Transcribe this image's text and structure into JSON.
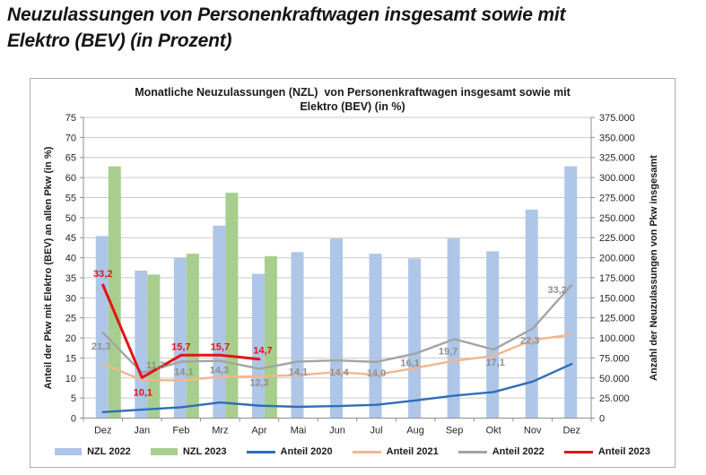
{
  "page": {
    "title_line1": "Neuzulassungen von Personenkraftwagen insgesamt sowie mit",
    "title_line2": "Elektro (BEV) (in Prozent)"
  },
  "chart": {
    "title_line1": "Monatliche Neuzulassungen (NZL)  von Personenkraftwagen insgesamt sowie mit",
    "title_line2": "Elektro (BEV) (in %)",
    "left_axis_title": "Anteil der Pkw mit Elektro (BEV) an allen Pkw (in %)",
    "right_axis_title": "Anzahl der Neuzulassungen von Pkw insgesamt"
  },
  "chart_data": {
    "type": "bar",
    "title": "Monatliche Neuzulassungen (NZL) von Personenkraftwagen insgesamt sowie mit Elektro (BEV) (in %)",
    "categories": [
      "Dez",
      "Jan",
      "Feb",
      "Mrz",
      "Apr",
      "Mai",
      "Jun",
      "Jul",
      "Aug",
      "Sep",
      "Okt",
      "Nov",
      "Dez"
    ],
    "left_axis": {
      "label": "Anteil der Pkw mit Elektro (BEV) an allen Pkw (in %)",
      "min": 0,
      "max": 75,
      "step": 5,
      "ticks": [
        "0",
        "5",
        "10",
        "15",
        "20",
        "25",
        "30",
        "35",
        "40",
        "45",
        "50",
        "55",
        "60",
        "65",
        "70",
        "75"
      ]
    },
    "right_axis": {
      "label": "Anzahl der Neuzulassungen von Pkw insgesamt",
      "min": 0,
      "max": 375000,
      "step": 25000,
      "ticks": [
        "0",
        "25.000",
        "50.000",
        "75.000",
        "100.000",
        "125.000",
        "150.000",
        "175.000",
        "200.000",
        "225.000",
        "250.000",
        "275.000",
        "300.000",
        "325.000",
        "350.000",
        "375.000"
      ]
    },
    "grid": "horizontal",
    "legend_position": "bottom",
    "bar_series": [
      {
        "name": "NZL 2022",
        "axis": "right",
        "color": "#aec6e8",
        "values": [
          227000,
          184000,
          200000,
          240000,
          180000,
          207000,
          224000,
          205000,
          199000,
          224000,
          208000,
          260000,
          314000
        ]
      },
      {
        "name": "NZL 2023",
        "axis": "right",
        "color": "#a7ce8e",
        "values": [
          314000,
          179000,
          205000,
          281000,
          202000,
          null,
          null,
          null,
          null,
          null,
          null,
          null,
          null
        ]
      }
    ],
    "line_series": [
      {
        "name": "Anteil 2020",
        "axis": "left",
        "color": "#2f6eb6",
        "width": 2.4,
        "values": [
          1.5,
          2.1,
          2.7,
          3.9,
          3.1,
          2.8,
          3.0,
          3.3,
          4.4,
          5.6,
          6.5,
          9.1,
          13.5
        ],
        "labels": null,
        "label_color": null
      },
      {
        "name": "Anteil 2021",
        "axis": "left",
        "color": "#f3b68c",
        "width": 2.4,
        "values": [
          13.5,
          9.5,
          9.4,
          10.3,
          10.4,
          10.7,
          11.5,
          10.8,
          12.5,
          14.3,
          15.5,
          19.5,
          20.8
        ],
        "labels": null,
        "label_color": null
      },
      {
        "name": "Anteil 2022",
        "axis": "left",
        "color": "#a3a3a3",
        "width": 2.4,
        "values": [
          21.3,
          11.3,
          14.1,
          14.3,
          12.3,
          14.1,
          14.4,
          14.0,
          16.1,
          19.7,
          17.1,
          22.3,
          33.2
        ],
        "labels": [
          "21,3",
          "11,3",
          "14,1",
          "14,3",
          "12,3",
          "14,1",
          "14,4",
          "14,0",
          "16,1",
          "19,7",
          "17,1",
          "22,3",
          "33,2"
        ],
        "label_color": "#8f8f8f"
      },
      {
        "name": "Anteil 2023",
        "axis": "left",
        "color": "#e31414",
        "width": 3,
        "values": [
          33.2,
          10.1,
          15.7,
          15.7,
          14.7
        ],
        "labels": [
          "33,2",
          "10,1",
          "15,7",
          "15,7",
          "14,7"
        ],
        "label_color": "#e31414"
      }
    ],
    "legend": [
      {
        "label": "NZL 2022",
        "type": "bar",
        "color": "#aec6e8"
      },
      {
        "label": "NZL 2023",
        "type": "bar",
        "color": "#a7ce8e"
      },
      {
        "label": "Anteil 2020",
        "type": "line",
        "color": "#2f6eb6"
      },
      {
        "label": "Anteil 2021",
        "type": "line",
        "color": "#f3b68c"
      },
      {
        "label": "Anteil 2022",
        "type": "line",
        "color": "#a3a3a3"
      },
      {
        "label": "Anteil 2023",
        "type": "line",
        "color": "#e31414"
      }
    ]
  }
}
